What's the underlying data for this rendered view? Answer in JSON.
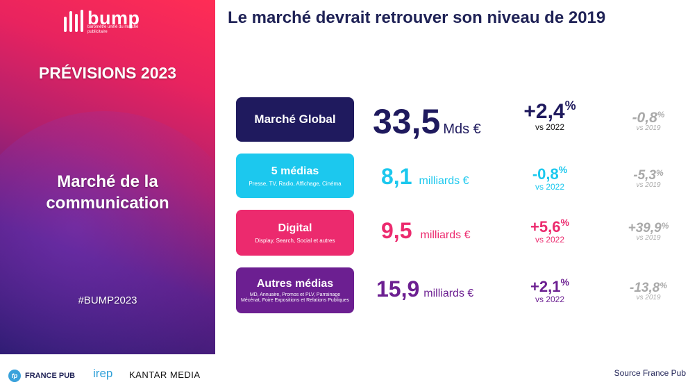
{
  "brand": {
    "name": "bump",
    "tagline": "baromètre unifié du marché publicitaire"
  },
  "sidebar": {
    "title": "PRÉVISIONS 2023",
    "subtitle_line1": "Marché de la",
    "subtitle_line2": "communication",
    "hashtag": "#BUMP2023"
  },
  "headline": "Le marché devrait retrouver son niveau de 2019",
  "rows": [
    {
      "label": "Marché Global",
      "sub": "",
      "value": "33,5",
      "unit": "Mds €",
      "change_num": "+2,4",
      "change_pct": "%",
      "change_ref": "vs 2022",
      "change19_num": "-0,8",
      "change19_pct": "%",
      "change19_ref": "vs 2019",
      "color": "#1f1a5e"
    },
    {
      "label": "5 médias",
      "sub": "Presse, TV, Radio, Affichage, Cinéma",
      "value": "8,1",
      "unit": "milliards €",
      "change_num": "-0,8",
      "change_pct": "%",
      "change_ref": "vs 2022",
      "change19_num": "-5,3",
      "change19_pct": "%",
      "change19_ref": "vs 2019",
      "color": "#1cc8ee"
    },
    {
      "label": "Digital",
      "sub": "Display, Search, Social et autres",
      "value": "9,5",
      "unit": "milliards €",
      "change_num": "+5,6",
      "change_pct": "%",
      "change_ref": "vs 2022",
      "change19_num": "+39,9",
      "change19_pct": "%",
      "change19_ref": "vs 2019",
      "color": "#ec2a6e"
    },
    {
      "label": "Autres médias",
      "sub": "MD, Annuaire, Promos et PLV, Parrainage Mécénat, Foire Expositions et Relations Publiques",
      "value": "15,9",
      "unit": "milliards €",
      "change_num": "+2,1",
      "change_pct": "%",
      "change_ref": "vs 2022",
      "change19_num": "-13,8",
      "change19_pct": "%",
      "change19_ref": "vs 2019",
      "color": "#6c1f91"
    }
  ],
  "footer": {
    "logo1_icon": "fp",
    "logo1": "FRANCE PUB",
    "logo2": "irep",
    "logo3": "KANTAR MEDIA",
    "source": "Source France Pub"
  }
}
